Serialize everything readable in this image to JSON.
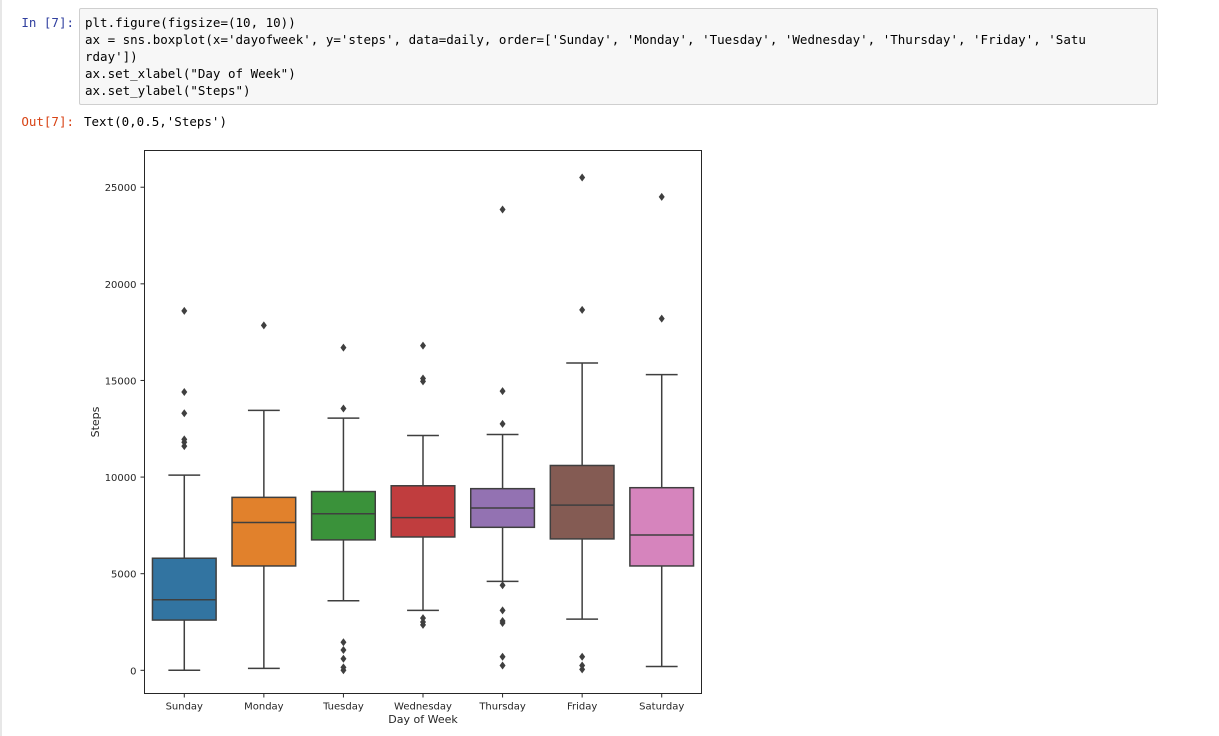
{
  "notebook": {
    "in_prompt": "In [7]:",
    "out_prompt": "Out[7]:",
    "code_lines": [
      "plt.figure(figsize=(10, 10))",
      "ax = sns.boxplot(x='dayofweek', y='steps', data=daily, order=['Sunday', 'Monday', 'Tuesday', 'Wednesday', 'Thursday', 'Friday', 'Satu",
      "rday'])",
      "ax.set_xlabel(\"Day of Week\")",
      "ax.set_ylabel(\"Steps\")"
    ],
    "output_text": "Text(0,0.5,'Steps')"
  },
  "chart_data": {
    "type": "box",
    "title": "",
    "xlabel": "Day of Week",
    "ylabel": "Steps",
    "ylim": [
      -1200,
      26900
    ],
    "yticks": [
      0,
      5000,
      10000,
      15000,
      20000,
      25000
    ],
    "grid": false,
    "categories": [
      "Sunday",
      "Monday",
      "Tuesday",
      "Wednesday",
      "Thursday",
      "Friday",
      "Saturday"
    ],
    "colors": [
      "#3274a1",
      "#e1812c",
      "#3a923a",
      "#c03d3e",
      "#9372b2",
      "#845b53",
      "#d684bd"
    ],
    "boxes": [
      {
        "category": "Sunday",
        "whisker_low": 0,
        "q1": 2600,
        "median": 3650,
        "q3": 5800,
        "whisker_high": 10100,
        "outliers": [
          11600,
          11800,
          11950,
          13300,
          14400,
          18600
        ]
      },
      {
        "category": "Monday",
        "whisker_low": 100,
        "q1": 5400,
        "median": 7650,
        "q3": 8950,
        "whisker_high": 13450,
        "outliers": [
          17850
        ]
      },
      {
        "category": "Tuesday",
        "whisker_low": 3600,
        "q1": 6750,
        "median": 8100,
        "q3": 9250,
        "whisker_high": 13050,
        "outliers": [
          0,
          150,
          600,
          1050,
          1450,
          13550,
          16700
        ]
      },
      {
        "category": "Wednesday",
        "whisker_low": 3100,
        "q1": 6900,
        "median": 7900,
        "q3": 9550,
        "whisker_high": 12150,
        "outliers": [
          2350,
          2500,
          2700,
          14950,
          15100,
          16800
        ]
      },
      {
        "category": "Thursday",
        "whisker_low": 4600,
        "q1": 7400,
        "median": 8400,
        "q3": 9400,
        "whisker_high": 12200,
        "outliers": [
          250,
          700,
          2450,
          2550,
          3100,
          4400,
          12750,
          14450,
          23850
        ]
      },
      {
        "category": "Friday",
        "whisker_low": 2650,
        "q1": 6800,
        "median": 8550,
        "q3": 10600,
        "whisker_high": 15900,
        "outliers": [
          50,
          250,
          700,
          18650,
          25500
        ]
      },
      {
        "category": "Saturday",
        "whisker_low": 200,
        "q1": 5400,
        "median": 7000,
        "q3": 9450,
        "whisker_high": 15300,
        "outliers": [
          18200,
          24500
        ]
      }
    ]
  }
}
